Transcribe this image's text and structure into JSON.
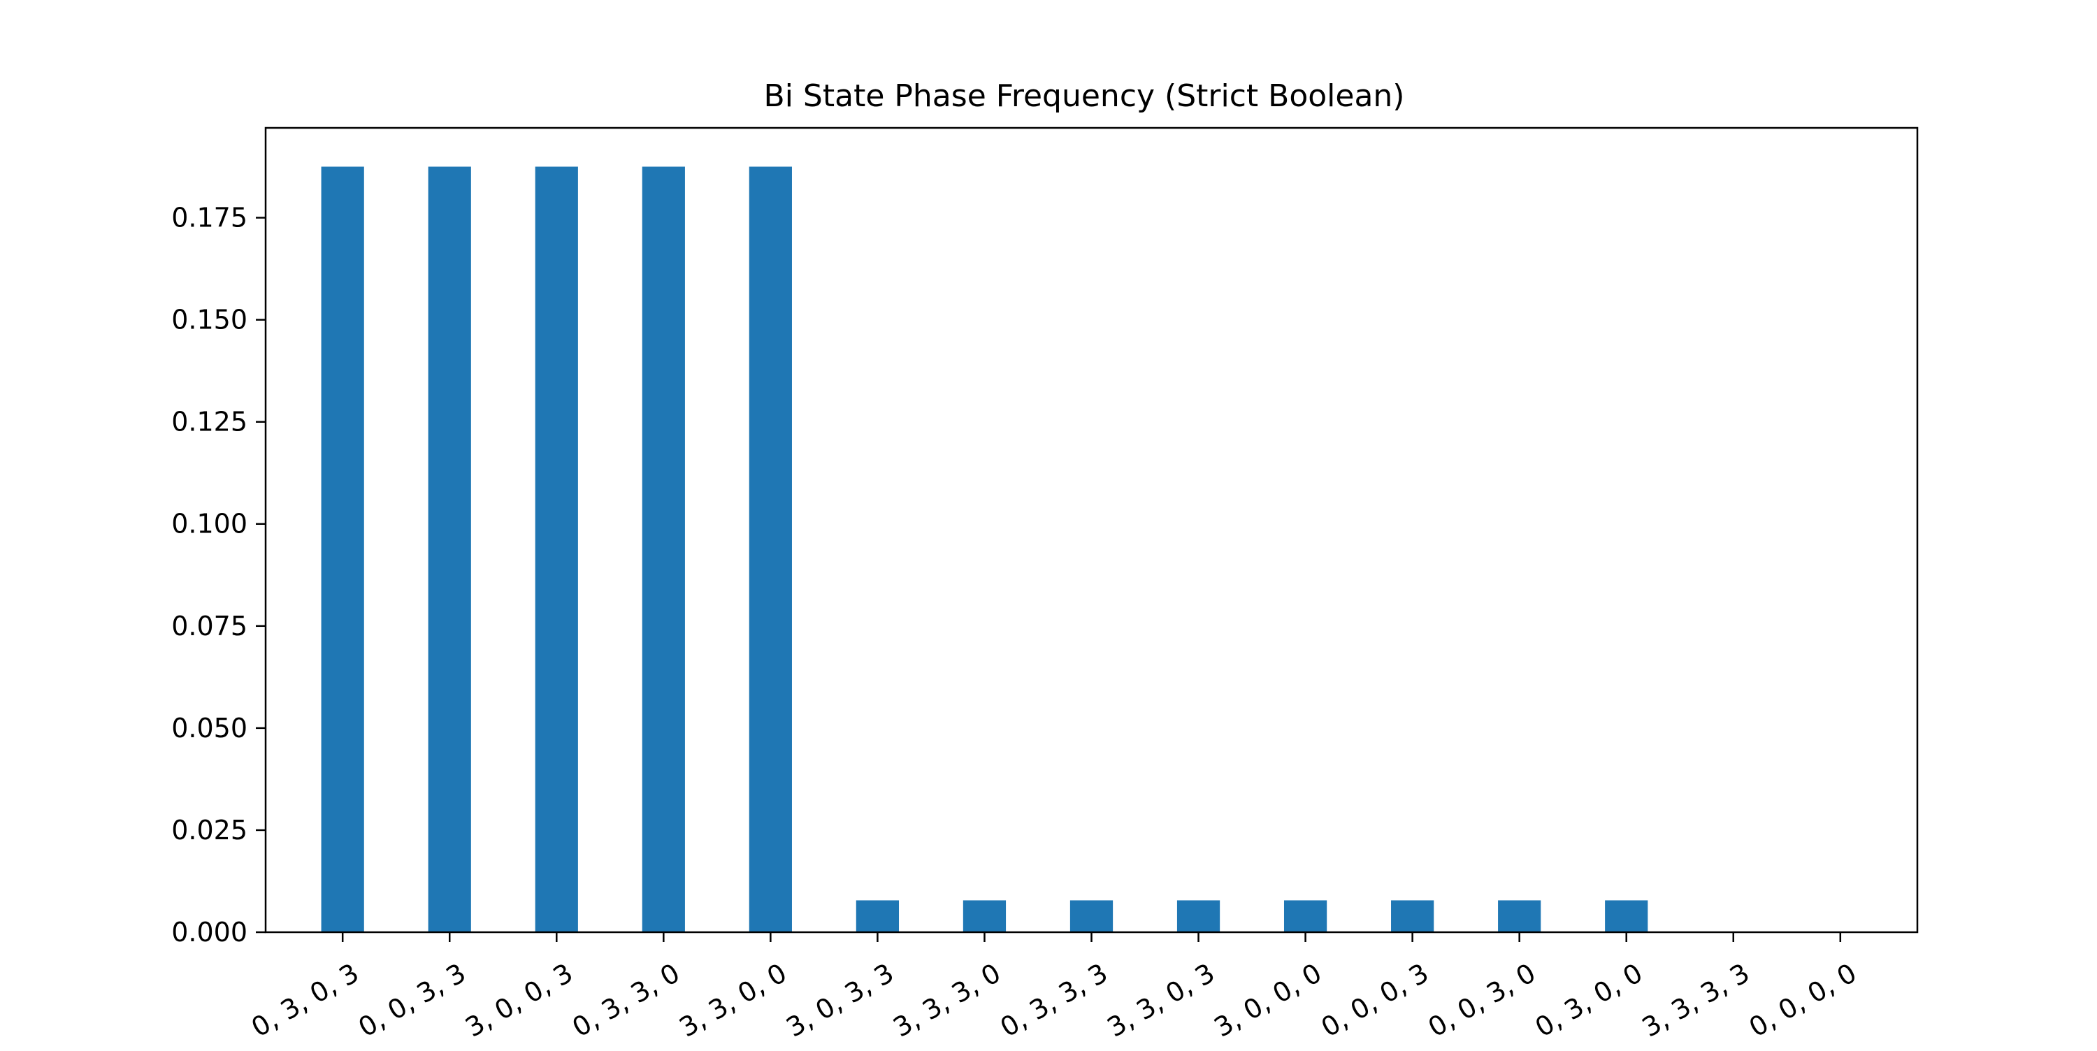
{
  "chart_data": {
    "type": "bar",
    "title": "Bi State Phase Frequency (Strict Boolean)",
    "xlabel": "",
    "ylabel": "",
    "categories": [
      "0, 3, 0, 3",
      "0, 0, 3, 3",
      "3, 0, 0, 3",
      "0, 3, 3, 0",
      "3, 3, 0, 0",
      "3, 0, 3, 3",
      "3, 3, 3, 0",
      "0, 3, 3, 3",
      "3, 3, 0, 3",
      "3, 0, 0, 0",
      "0, 0, 0, 3",
      "0, 0, 3, 0",
      "0, 3, 0, 0",
      "3, 3, 3, 3",
      "0, 0, 0, 0"
    ],
    "values": [
      0.1875,
      0.1875,
      0.1875,
      0.1875,
      0.1875,
      0.0078,
      0.0078,
      0.0078,
      0.0078,
      0.0078,
      0.0078,
      0.0078,
      0.0078,
      0.0,
      0.0
    ],
    "ylim": [
      0,
      0.197
    ],
    "yticks": [
      0.0,
      0.025,
      0.05,
      0.075,
      0.1,
      0.125,
      0.15,
      0.175
    ],
    "ytick_labels": [
      "0.000",
      "0.025",
      "0.050",
      "0.075",
      "0.100",
      "0.125",
      "0.150",
      "0.175"
    ],
    "grid": false,
    "legend": "none",
    "bar_color": "#1f77b4",
    "xtick_rotation_deg": 30
  }
}
